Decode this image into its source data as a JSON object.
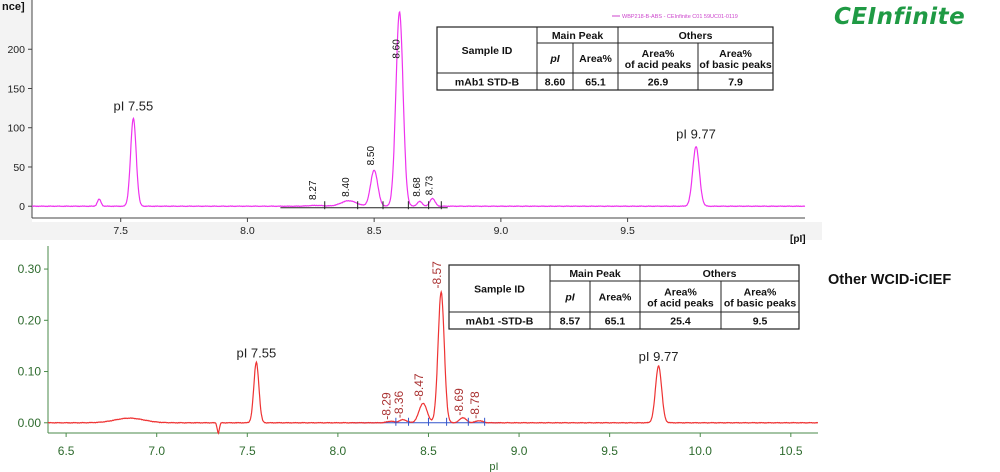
{
  "brand": {
    "logo_text": "CEInfinite",
    "color": "#1f9a44"
  },
  "side_label": "Other WCID-iCIEF",
  "chart_data": [
    {
      "type": "line",
      "y_axis_label_fragment": "nce]",
      "x_axis_label_fragment": "[pI]",
      "header_text": "WBP218-B-ABS - CEInfinite C01 59UC01-0119",
      "xlim": [
        7.15,
        10.2
      ],
      "ylim": [
        -15,
        250
      ],
      "x_ticks": [
        7.5,
        8.0,
        8.5,
        9.0,
        9.5
      ],
      "x_tick_labels": [
        "7.5",
        "8.0",
        "8.5",
        "9.0",
        "9.5"
      ],
      "y_ticks": [
        0,
        50,
        100,
        150,
        200
      ],
      "y_tick_labels": [
        "0",
        "50",
        "100",
        "150",
        "200"
      ],
      "line_color": "#ee33ee",
      "baseline": 0,
      "peaks": [
        {
          "x": 7.415,
          "height": 9,
          "width": 0.007
        },
        {
          "x": 7.55,
          "height": 112,
          "width": 0.011
        },
        {
          "x": 8.27,
          "height": 1,
          "width": 0.03
        },
        {
          "x": 8.4,
          "height": 7,
          "width": 0.03
        },
        {
          "x": 8.5,
          "height": 46,
          "width": 0.014
        },
        {
          "x": 8.6,
          "height": 248,
          "width": 0.014
        },
        {
          "x": 8.68,
          "height": 6,
          "width": 0.01
        },
        {
          "x": 8.73,
          "height": 10,
          "width": 0.01
        }
      ],
      "peak_labels": [
        {
          "x": 8.27,
          "y": 8,
          "text": "8.27"
        },
        {
          "x": 8.4,
          "y": 12,
          "text": "8.40"
        },
        {
          "x": 8.5,
          "y": 52,
          "text": "8.50"
        },
        {
          "x": 8.6,
          "y": 188,
          "text": "8.60"
        },
        {
          "x": 8.68,
          "y": 12,
          "text": "8.68"
        },
        {
          "x": 8.73,
          "y": 14,
          "text": "8.73"
        }
      ],
      "annotations": [
        {
          "x": 7.55,
          "y": 122,
          "text": "pI 7.55"
        },
        {
          "x": 9.77,
          "y": 86,
          "text": "pI 9.77"
        }
      ],
      "extra_peaks": [
        {
          "x": 9.77,
          "height": 76,
          "width": 0.013
        }
      ],
      "integration_baseline": {
        "x_start": 8.13,
        "x_end": 8.79,
        "y": -2
      },
      "table": {
        "header_sample": "Sample ID",
        "header_main": "Main Peak",
        "header_others": "Others",
        "header_pi": "pI",
        "header_area": "Area%",
        "header_acid": [
          "Area%",
          "of acid peaks"
        ],
        "header_basic": [
          "Area%",
          "of basic peaks"
        ],
        "row": {
          "sample": "mAb1   STD-B",
          "pi": "8.60",
          "area": "65.1",
          "acid": "26.9",
          "basic": "7.9"
        }
      }
    },
    {
      "type": "line",
      "xlabel": "pI",
      "xlim": [
        6.4,
        10.65
      ],
      "ylim": [
        -0.018,
        0.345
      ],
      "x_ticks": [
        6.5,
        7.0,
        7.5,
        8.0,
        8.5,
        9.0,
        9.5,
        10.0,
        10.5
      ],
      "x_tick_labels": [
        "6.5",
        "7.0",
        "7.5",
        "8.0",
        "8.5",
        "9.0",
        "9.5",
        "10.0",
        "10.5"
      ],
      "y_ticks": [
        0.0,
        0.1,
        0.2,
        0.3
      ],
      "y_tick_labels": [
        "0.00",
        "0.10",
        "0.20",
        "0.30"
      ],
      "line_color": "#ee3333",
      "baseline": 0,
      "peaks": [
        {
          "x": 6.85,
          "height": 0.009,
          "width": 0.08
        },
        {
          "x": 7.55,
          "height": 0.118,
          "width": 0.014
        },
        {
          "x": 8.29,
          "height": 0.003,
          "width": 0.02
        },
        {
          "x": 8.36,
          "height": 0.006,
          "width": 0.02
        },
        {
          "x": 8.47,
          "height": 0.038,
          "width": 0.022
        },
        {
          "x": 8.57,
          "height": 0.255,
          "width": 0.017
        },
        {
          "x": 8.69,
          "height": 0.01,
          "width": 0.018
        },
        {
          "x": 8.78,
          "height": 0.004,
          "width": 0.02
        },
        {
          "x": 9.77,
          "height": 0.111,
          "width": 0.017
        }
      ],
      "dips": [
        {
          "x": 7.34,
          "depth": 0.02,
          "width": 0.006
        }
      ],
      "peak_labels": [
        {
          "x": 8.29,
          "y": 0.006,
          "text": "8.29"
        },
        {
          "x": 8.36,
          "y": 0.009,
          "text": "8.36"
        },
        {
          "x": 8.47,
          "y": 0.043,
          "text": "8.47"
        },
        {
          "x": 8.57,
          "y": 0.262,
          "text": "8.57"
        },
        {
          "x": 8.69,
          "y": 0.014,
          "text": "8.69"
        },
        {
          "x": 8.78,
          "y": 0.008,
          "text": "8.78"
        }
      ],
      "annotations": [
        {
          "x": 7.55,
          "y": 0.127,
          "text": "pI 7.55"
        },
        {
          "x": 9.77,
          "y": 0.121,
          "text": "pI 9.77"
        }
      ],
      "integration_baseline": {
        "x_start": 8.07,
        "x_end": 8.9,
        "y": 0.0
      },
      "table": {
        "header_sample": "Sample ID",
        "header_main": "Main Peak",
        "header_others": "Others",
        "header_pi": "pI",
        "header_area": "Area%",
        "header_acid": [
          "Area%",
          "of acid peaks"
        ],
        "header_basic": [
          "Area%",
          "of basic peaks"
        ],
        "row": {
          "sample": "mAb1   -STD-B",
          "pi": "8.57",
          "area": "65.1",
          "acid": "25.4",
          "basic": "9.5"
        }
      }
    }
  ]
}
